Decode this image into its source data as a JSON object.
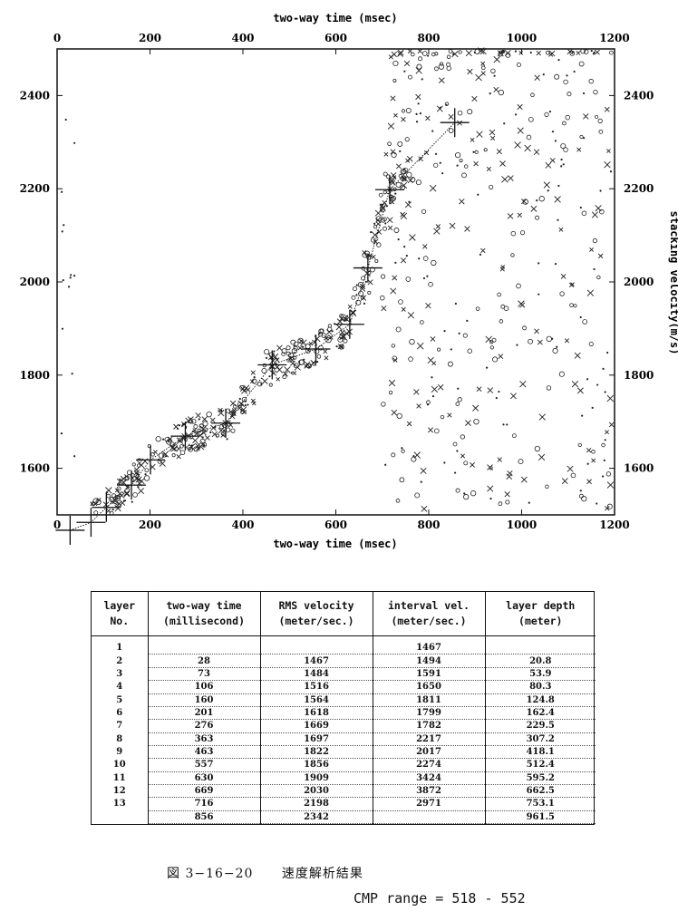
{
  "chart_data": {
    "type": "scatter",
    "xlabel": "two-way time (msec)",
    "ylabel": "stacking velocity(m/s)",
    "xlim": [
      0,
      1200
    ],
    "ylim": [
      1500,
      2500
    ],
    "x_ticks": [
      0,
      200,
      400,
      600,
      800,
      1000,
      1200
    ],
    "y_ticks": [
      1600,
      1800,
      2000,
      2200,
      2400
    ],
    "series": [
      {
        "points": [
          [
            28,
            1467
          ],
          [
            73,
            1484
          ],
          [
            106,
            1516
          ],
          [
            160,
            1564
          ],
          [
            201,
            1618
          ],
          [
            276,
            1669
          ],
          [
            363,
            1697
          ],
          [
            463,
            1822
          ],
          [
            557,
            1856
          ],
          [
            630,
            1909
          ],
          [
            669,
            2030
          ],
          [
            716,
            2198
          ],
          [
            856,
            2342
          ]
        ]
      }
    ]
  },
  "table": {
    "headers": [
      [
        "layer",
        "No."
      ],
      [
        "two-way time",
        "(millisecond)"
      ],
      [
        "RMS velocity",
        "(meter/sec.)"
      ],
      [
        "interval vel.",
        "(meter/sec.)"
      ],
      [
        "layer depth",
        "(meter)"
      ]
    ],
    "rows": [
      [
        "1",
        "",
        "",
        "1467",
        ""
      ],
      [
        "2",
        "28",
        "1467",
        "1494",
        "20.8"
      ],
      [
        "3",
        "73",
        "1484",
        "1591",
        "53.9"
      ],
      [
        "4",
        "106",
        "1516",
        "1650",
        "80.3"
      ],
      [
        "5",
        "160",
        "1564",
        "1811",
        "124.8"
      ],
      [
        "6",
        "201",
        "1618",
        "1799",
        "162.4"
      ],
      [
        "7",
        "276",
        "1669",
        "1782",
        "229.5"
      ],
      [
        "8",
        "363",
        "1697",
        "2217",
        "307.2"
      ],
      [
        "9",
        "463",
        "1822",
        "2017",
        "418.1"
      ],
      [
        "10",
        "557",
        "1856",
        "2274",
        "512.4"
      ],
      [
        "11",
        "630",
        "1909",
        "3424",
        "595.2"
      ],
      [
        "12",
        "669",
        "2030",
        "3872",
        "662.5"
      ],
      [
        "13",
        "716",
        "2198",
        "2971",
        "753.1"
      ],
      [
        "",
        "856",
        "2342",
        "",
        "961.5"
      ]
    ]
  },
  "caption": {
    "figure_number": "図 3−16−20",
    "title": "速度解析結果"
  },
  "cmp_range": "CMP range = 518 - 552"
}
